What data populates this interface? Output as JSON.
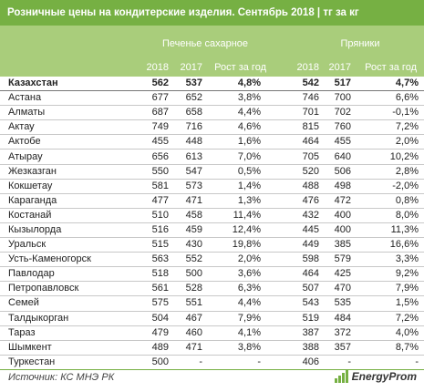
{
  "title": "Розничные цены на кондитерские изделия. Сентябрь 2018 | тг за кг",
  "groups": {
    "cookies": "Печенье сахарное",
    "gingerbread": "Пряники"
  },
  "subheaders": [
    "2018",
    "2017",
    "Рост за год",
    "2018",
    "2017",
    "Рост за год"
  ],
  "rows": [
    [
      "Казахстан",
      "562",
      "537",
      "4,8%",
      "542",
      "517",
      "4,7%"
    ],
    [
      "Астана",
      "677",
      "652",
      "3,8%",
      "746",
      "700",
      "6,6%"
    ],
    [
      "Алматы",
      "687",
      "658",
      "4,4%",
      "701",
      "702",
      "-0,1%"
    ],
    [
      "Актау",
      "749",
      "716",
      "4,6%",
      "815",
      "760",
      "7,2%"
    ],
    [
      "Актобе",
      "455",
      "448",
      "1,6%",
      "464",
      "455",
      "2,0%"
    ],
    [
      "Атырау",
      "656",
      "613",
      "7,0%",
      "705",
      "640",
      "10,2%"
    ],
    [
      "Жезказган",
      "550",
      "547",
      "0,5%",
      "520",
      "506",
      "2,8%"
    ],
    [
      "Кокшетау",
      "581",
      "573",
      "1,4%",
      "488",
      "498",
      "-2,0%"
    ],
    [
      "Караганда",
      "477",
      "471",
      "1,3%",
      "476",
      "472",
      "0,8%"
    ],
    [
      "Костанай",
      "510",
      "458",
      "11,4%",
      "432",
      "400",
      "8,0%"
    ],
    [
      "Кызылорда",
      "516",
      "459",
      "12,4%",
      "445",
      "400",
      "11,3%"
    ],
    [
      "Уральск",
      "515",
      "430",
      "19,8%",
      "449",
      "385",
      "16,6%"
    ],
    [
      "Усть-Каменогорск",
      "563",
      "552",
      "2,0%",
      "598",
      "579",
      "3,3%"
    ],
    [
      "Павлодар",
      "518",
      "500",
      "3,6%",
      "464",
      "425",
      "9,2%"
    ],
    [
      "Петропавловск",
      "561",
      "528",
      "6,3%",
      "507",
      "470",
      "7,9%"
    ],
    [
      "Семей",
      "575",
      "551",
      "4,4%",
      "543",
      "535",
      "1,5%"
    ],
    [
      "Талдыкорган",
      "504",
      "467",
      "7,9%",
      "519",
      "484",
      "7,2%"
    ],
    [
      "Тараз",
      "479",
      "460",
      "4,1%",
      "387",
      "372",
      "4,0%"
    ],
    [
      "Шымкент",
      "489",
      "471",
      "3,8%",
      "388",
      "357",
      "8,7%"
    ],
    [
      "Туркестан",
      "500",
      "-",
      "-",
      "406",
      "-",
      "-"
    ]
  ],
  "source": "Источник: КС МНЭ РК",
  "logo": "EnergyProm",
  "colors": {
    "title_bg": "#76b043",
    "header_bg": "#a9cd7b"
  }
}
